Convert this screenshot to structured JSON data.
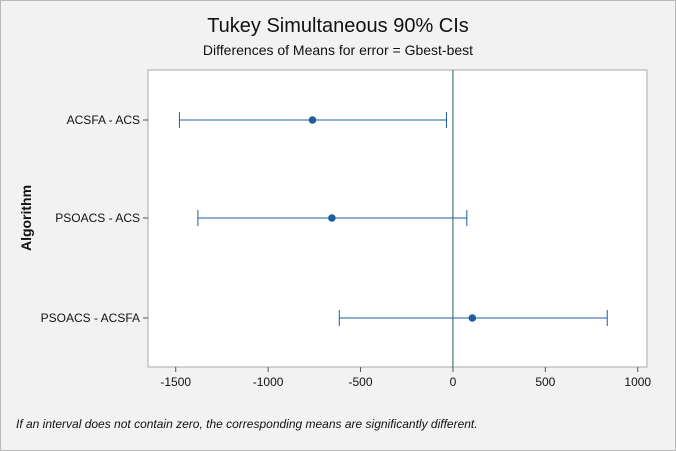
{
  "chart_data": {
    "type": "interval",
    "title": "Tukey Simultaneous 90% CIs",
    "subtitle": "Differences of Means for error = Gbest-best",
    "xlabel": "",
    "ylabel": "Algorithm",
    "xlim": [
      -1650,
      1050
    ],
    "xticks": [
      -1500,
      -1000,
      -500,
      0,
      500,
      1000
    ],
    "xtick_labels": [
      "-1500",
      "-1000",
      "-500",
      "0",
      "500",
      "1000"
    ],
    "reference_line": 0,
    "categories": [
      "ACSFA - ACS",
      "PSOACS - ACS",
      "PSOACS - ACSFA"
    ],
    "estimates": [
      -760,
      -655,
      105
    ],
    "lower": [
      -1480,
      -1380,
      -615
    ],
    "upper": [
      -35,
      75,
      835
    ],
    "grid": false,
    "colors": {
      "interval": "#1f5fa0",
      "marker": "#1f5fa0",
      "reference": "#1a6b3a",
      "plot_bg": "#ffffff",
      "frame_bg": "#f2f2f2"
    }
  },
  "footnote": "If an interval does not contain zero, the corresponding means are significantly different."
}
